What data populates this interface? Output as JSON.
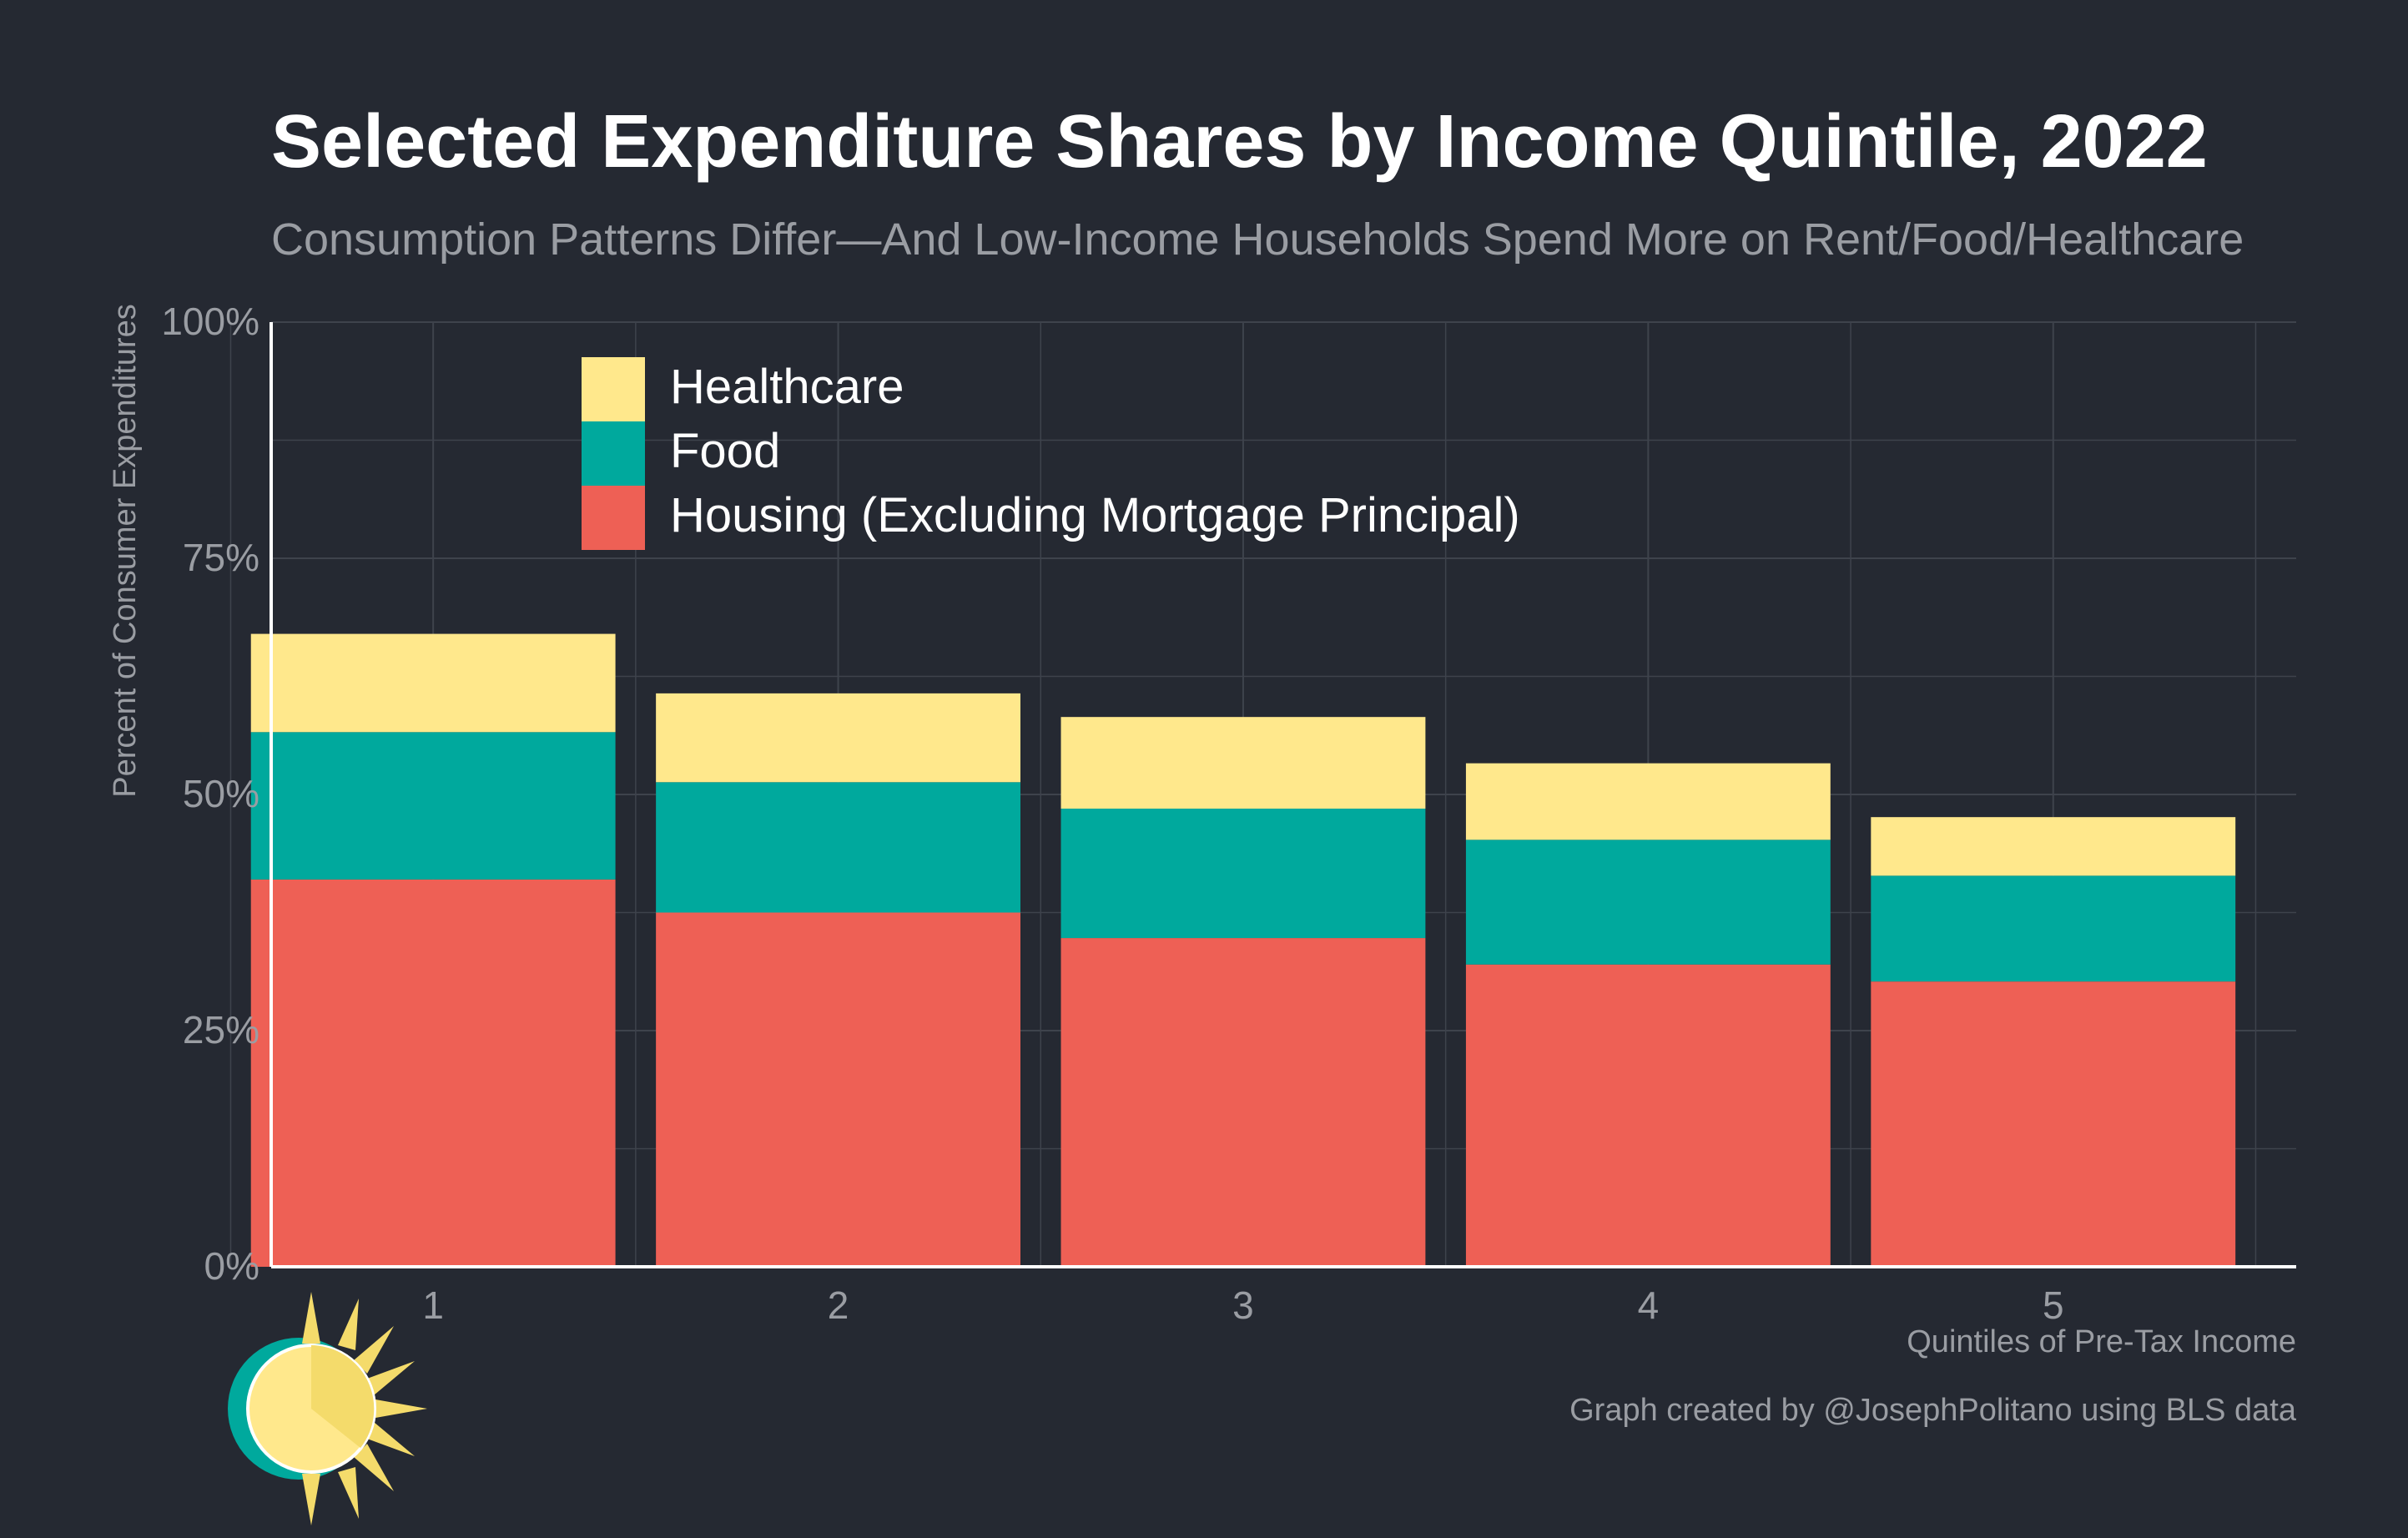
{
  "chart_data": {
    "type": "bar",
    "stacked": true,
    "title": "Selected Expenditure Shares by Income Quintile, 2022",
    "subtitle": "Consumption Patterns Differ—And Low-Income Households Spend More on Rent/Food/Healthcare",
    "xlabel": "Quintiles of Pre-Tax Income",
    "ylabel": "Percent of Consumer Expenditures",
    "categories": [
      "1",
      "2",
      "3",
      "4",
      "5"
    ],
    "ylim": [
      0,
      100
    ],
    "yticks": [
      "0%",
      "25%",
      "50%",
      "75%",
      "100%"
    ],
    "grid": true,
    "legend_position": "top-left",
    "series": [
      {
        "name": "Housing (Excluding Mortgage Principal)",
        "color": "#ee6055",
        "values": [
          41.0,
          37.5,
          34.8,
          32.0,
          30.2
        ]
      },
      {
        "name": "Food",
        "color": "#00a99d",
        "values": [
          15.6,
          13.8,
          13.7,
          13.2,
          11.2
        ]
      },
      {
        "name": "Healthcare",
        "color": "#ffe88c",
        "values": [
          10.4,
          9.4,
          9.7,
          8.1,
          6.2
        ]
      }
    ],
    "legend_order": [
      "Healthcare",
      "Food",
      "Housing (Excluding Mortgage Principal)"
    ]
  },
  "credit": "Graph created by @JosephPolitano using BLS data",
  "logo": {
    "icon": "sun-logo-icon",
    "colors": [
      "#00a99d",
      "#ffe88c",
      "#f4db6b"
    ]
  }
}
